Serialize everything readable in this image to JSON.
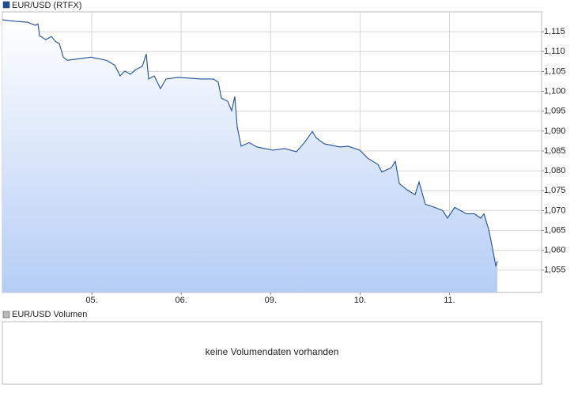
{
  "chart_data": {
    "type": "area",
    "legend_position": "top-left",
    "grid": true,
    "series": [
      {
        "name": "EUR/USD (RTFX)",
        "color": "#1f4e9c",
        "x": [
          0,
          0.15,
          0.283,
          0.371,
          0.398,
          0.416,
          0.486,
          0.548,
          0.592,
          0.637,
          0.681,
          0.725,
          0.858,
          0.99,
          1.079,
          1.167,
          1.256,
          1.317,
          1.37,
          1.432,
          1.494,
          1.565,
          1.609,
          1.636,
          1.698,
          1.768,
          1.83,
          1.963,
          2.096,
          2.228,
          2.361,
          2.414,
          2.449,
          2.52,
          2.564,
          2.599,
          2.626,
          2.67,
          2.759,
          2.847,
          2.935,
          3.024,
          3.157,
          3.289,
          3.378,
          3.466,
          3.51,
          3.599,
          3.687,
          3.776,
          3.864,
          3.997,
          4.085,
          4.2,
          4.244,
          4.35,
          4.394,
          4.439,
          4.527,
          4.615,
          4.66,
          4.73,
          4.836,
          4.925,
          4.978,
          5.058,
          5.19,
          5.278,
          5.349,
          5.385,
          5.438,
          5.474,
          5.518,
          5.536
        ],
        "values": [
          1.118,
          1.1176,
          1.1174,
          1.1166,
          1.117,
          1.114,
          1.113,
          1.1138,
          1.1126,
          1.112,
          1.1086,
          1.1078,
          1.1082,
          1.1086,
          1.1082,
          1.1078,
          1.1066,
          1.1039,
          1.1051,
          1.1043,
          1.1055,
          1.1063,
          1.1094,
          1.1031,
          1.1039,
          1.1007,
          1.1031,
          1.1035,
          1.1033,
          1.1031,
          1.1031,
          1.1023,
          1.0983,
          1.0975,
          1.0951,
          1.0987,
          1.0911,
          1.0862,
          1.0871,
          1.086,
          1.0856,
          1.0852,
          1.0856,
          1.0848,
          1.0871,
          1.0899,
          1.0883,
          1.0868,
          1.0864,
          1.086,
          1.0862,
          1.0852,
          1.0832,
          1.0816,
          1.0797,
          1.0808,
          1.0824,
          1.0768,
          1.0752,
          1.074,
          1.0772,
          1.0716,
          1.0708,
          1.07,
          1.0681,
          1.0708,
          1.0692,
          1.0692,
          1.0681,
          1.0692,
          1.0653,
          1.0613,
          1.0561,
          1.0573
        ]
      }
    ],
    "xlim": [
      0,
      6.03
    ],
    "xticks": [
      {
        "value": 1,
        "label": "05."
      },
      {
        "value": 2,
        "label": "06."
      },
      {
        "value": 3,
        "label": "09."
      },
      {
        "value": 4,
        "label": "10."
      },
      {
        "value": 5,
        "label": "11."
      }
    ],
    "ylim": [
      1.0494,
      1.12
    ],
    "yticks": [
      {
        "value": 1.055,
        "label": "1,055"
      },
      {
        "value": 1.06,
        "label": "1,060"
      },
      {
        "value": 1.065,
        "label": "1,065"
      },
      {
        "value": 1.07,
        "label": "1,070"
      },
      {
        "value": 1.075,
        "label": "1,075"
      },
      {
        "value": 1.08,
        "label": "1,080"
      },
      {
        "value": 1.085,
        "label": "1,085"
      },
      {
        "value": 1.09,
        "label": "1,090"
      },
      {
        "value": 1.095,
        "label": "1,095"
      },
      {
        "value": 1.1,
        "label": "1,100"
      },
      {
        "value": 1.105,
        "label": "1,105"
      },
      {
        "value": 1.11,
        "label": "1,110"
      },
      {
        "value": 1.115,
        "label": "1,115"
      }
    ]
  },
  "volume_panel": {
    "legend": "EUR/USD Volumen",
    "message": "keine Volumendaten vorhanden"
  }
}
